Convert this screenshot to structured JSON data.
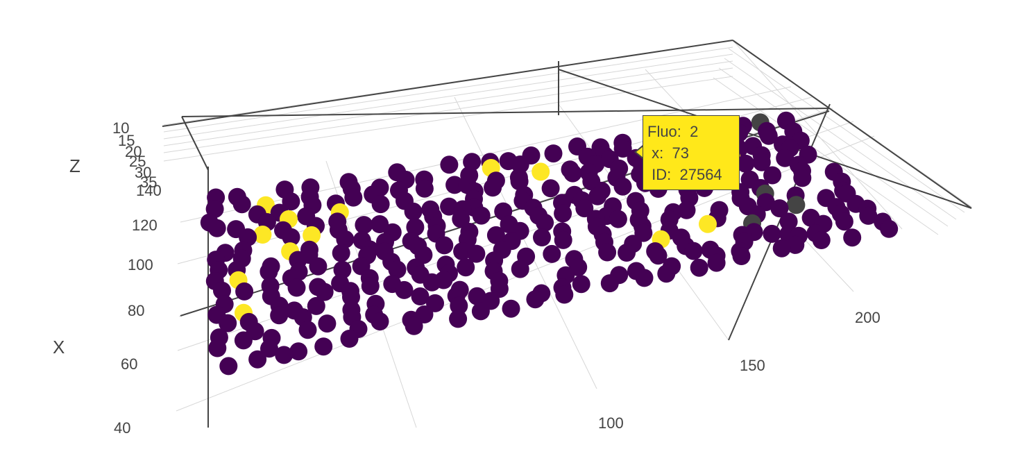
{
  "chart_data": {
    "type": "scatter",
    "dimensions": 3,
    "axes": {
      "x": {
        "title": "X",
        "ticks": [
          "40",
          "60",
          "80",
          "100",
          "120",
          "140"
        ]
      },
      "y": {
        "title": "",
        "ticks": [
          "100",
          "150",
          "200"
        ]
      },
      "z": {
        "title": "Z",
        "ticks": [
          "10",
          "15",
          "20",
          "25",
          "30",
          "35"
        ]
      }
    },
    "marker_colors": {
      "low": "#440154",
      "high": "#fde725",
      "missing": "#444444"
    },
    "color_variable": "Fluo",
    "grid": true,
    "legend": "none",
    "hover": {
      "lines": [
        {
          "label": "Fluo:",
          "value": "2"
        },
        {
          "label": "x:",
          "value": "73"
        },
        {
          "label": "ID:",
          "value": "27564"
        }
      ]
    }
  }
}
